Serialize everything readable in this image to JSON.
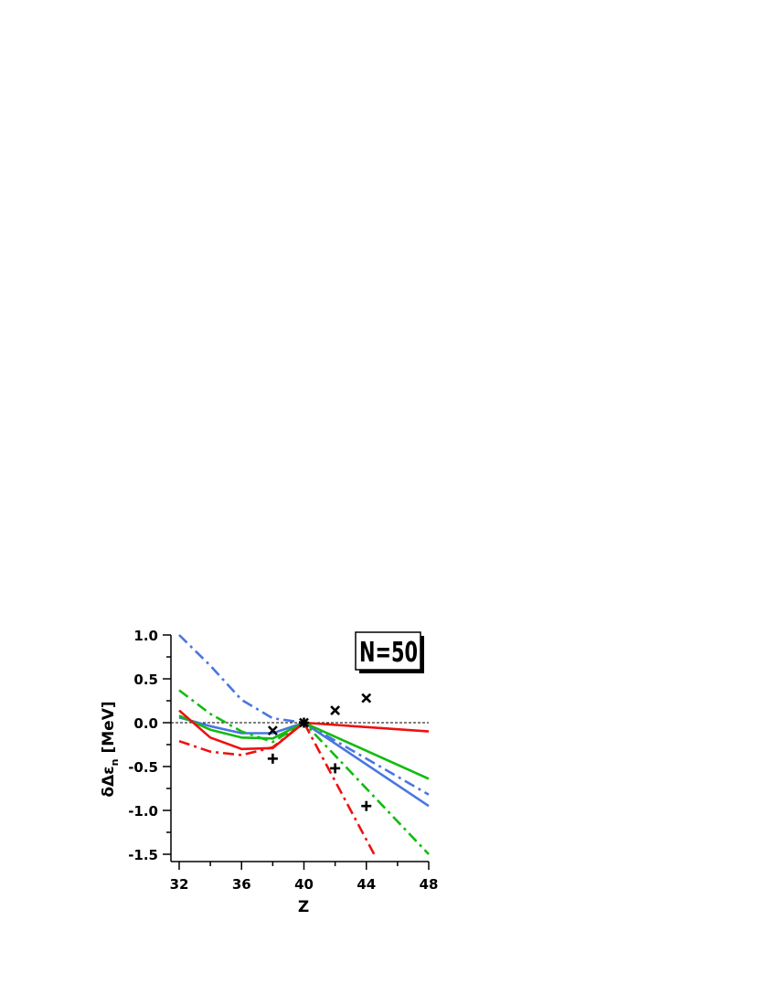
{
  "chart_data": {
    "type": "line",
    "xlabel": "Z",
    "ylabel": "δΔε",
    "ylabel_sub": "n",
    "ylabel_unit": "[MeV]",
    "annotation": "N=50",
    "xlim": [
      31.5,
      48
    ],
    "ylim": [
      -1.58,
      1.0
    ],
    "x_ticks": [
      32,
      36,
      40,
      44,
      48
    ],
    "y_ticks": [
      1.0,
      0.5,
      0.0,
      -0.5,
      -1.0,
      -1.5
    ],
    "x_tick_labels": [
      "32",
      "36",
      "40",
      "44",
      "48"
    ],
    "y_tick_labels": [
      "1.0",
      "0.5",
      "0.0",
      "-0.5",
      "-1.0",
      "-1.5"
    ],
    "reference_line": 0,
    "series": [
      {
        "color": "#4a76e0",
        "style": "solid",
        "x": [
          32,
          34,
          36,
          38,
          40,
          48
        ],
        "y": [
          0.06,
          -0.04,
          -0.12,
          -0.12,
          0.0,
          -0.95
        ]
      },
      {
        "color": "#4a76e0",
        "style": "dashdot",
        "x": [
          32,
          34,
          36,
          38,
          40,
          48
        ],
        "y": [
          1.0,
          0.65,
          0.26,
          0.05,
          0.0,
          -0.82
        ]
      },
      {
        "color": "#11bb11",
        "style": "solid",
        "x": [
          32,
          34,
          36,
          38,
          40,
          48
        ],
        "y": [
          0.08,
          -0.08,
          -0.17,
          -0.18,
          0.0,
          -0.64
        ]
      },
      {
        "color": "#11bb11",
        "style": "dashdot",
        "x": [
          32,
          34,
          36,
          38,
          40,
          48
        ],
        "y": [
          0.37,
          0.1,
          -0.1,
          -0.22,
          0.0,
          -1.5
        ]
      },
      {
        "color": "#ee1111",
        "style": "solid",
        "x": [
          32,
          34,
          36,
          38,
          40,
          48
        ],
        "y": [
          0.14,
          -0.17,
          -0.3,
          -0.29,
          0.0,
          -0.1
        ]
      },
      {
        "color": "#ee1111",
        "style": "dashdot",
        "x": [
          32,
          34,
          36,
          38,
          40,
          44.5
        ],
        "y": [
          -0.21,
          -0.33,
          -0.37,
          -0.28,
          0.0,
          -1.5
        ]
      }
    ],
    "markers": [
      {
        "symbol": "x",
        "points": [
          [
            38,
            -0.09
          ],
          [
            40,
            0.0
          ],
          [
            42,
            0.14
          ],
          [
            44,
            0.28
          ]
        ]
      },
      {
        "symbol": "plus",
        "points": [
          [
            38,
            -0.41
          ],
          [
            40,
            0.0
          ],
          [
            42,
            -0.52
          ],
          [
            44,
            -0.95
          ]
        ]
      }
    ]
  }
}
